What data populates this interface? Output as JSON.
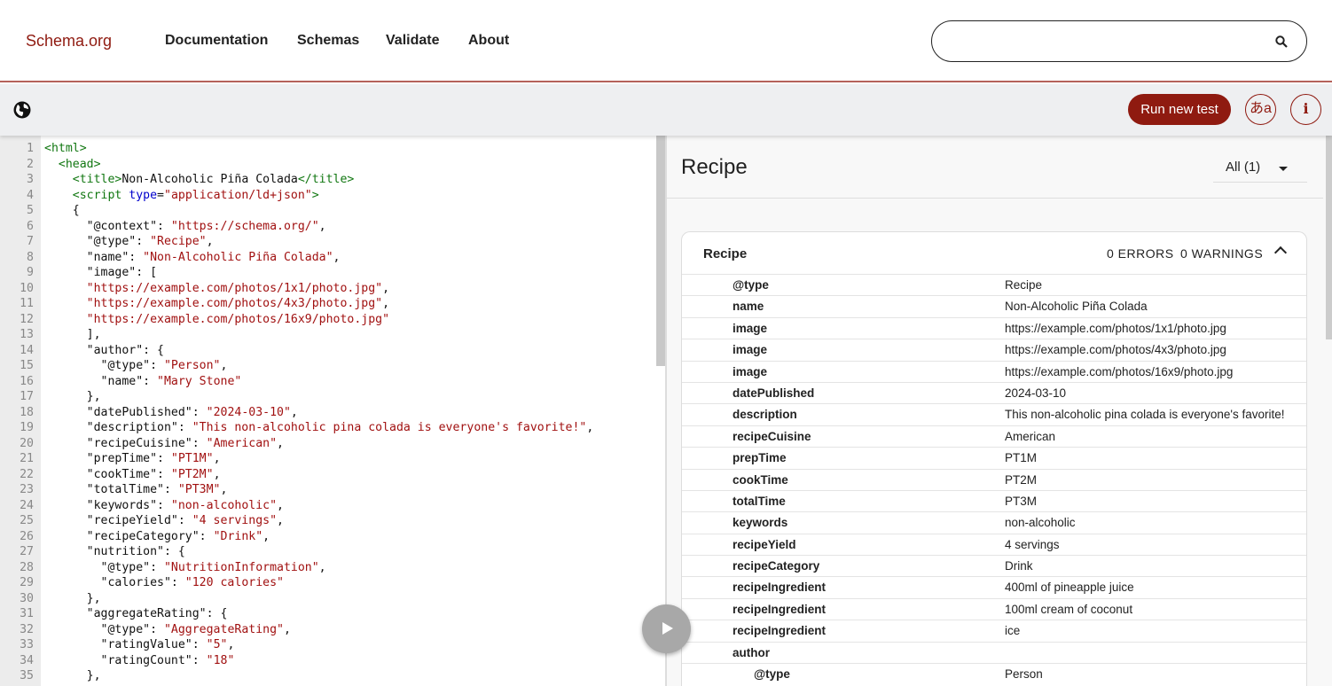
{
  "header": {
    "logo": "Schema.org",
    "nav": [
      "Documentation",
      "Schemas",
      "Validate",
      "About"
    ],
    "search_value": "",
    "search_icon": "search-icon"
  },
  "toolbar": {
    "globe_icon": "globe-icon",
    "run_label": "Run new test",
    "lang_label": "あa",
    "info_label": "i"
  },
  "colors": {
    "brand": "#8f1a10",
    "tag": "#117711",
    "attr": "#0000cc",
    "string": "#a11111"
  },
  "editor": {
    "lines": [
      [
        [
          0,
          "tag",
          "<html>"
        ]
      ],
      [
        [
          2,
          "tag",
          "<head>"
        ]
      ],
      [
        [
          4,
          "tag",
          "<title>"
        ],
        [
          0,
          "pl",
          "Non-Alcoholic Piña Colada"
        ],
        [
          0,
          "tag",
          "</title>"
        ]
      ],
      [
        [
          4,
          "tag",
          "<script "
        ],
        [
          0,
          "attr",
          "type"
        ],
        [
          0,
          "pl",
          "="
        ],
        [
          0,
          "str",
          "\"application/ld+json\""
        ],
        [
          0,
          "tag",
          ">"
        ]
      ],
      [
        [
          4,
          "pl",
          "{"
        ]
      ],
      [
        [
          6,
          "pl",
          "\"@context\": "
        ],
        [
          0,
          "str",
          "\"https://schema.org/\""
        ],
        [
          0,
          "pl",
          ","
        ]
      ],
      [
        [
          6,
          "pl",
          "\"@type\": "
        ],
        [
          0,
          "str",
          "\"Recipe\""
        ],
        [
          0,
          "pl",
          ","
        ]
      ],
      [
        [
          6,
          "pl",
          "\"name\": "
        ],
        [
          0,
          "str",
          "\"Non-Alcoholic Piña Colada\""
        ],
        [
          0,
          "pl",
          ","
        ]
      ],
      [
        [
          6,
          "pl",
          "\"image\": ["
        ]
      ],
      [
        [
          6,
          "str",
          "\"https://example.com/photos/1x1/photo.jpg\""
        ],
        [
          0,
          "pl",
          ","
        ]
      ],
      [
        [
          6,
          "str",
          "\"https://example.com/photos/4x3/photo.jpg\""
        ],
        [
          0,
          "pl",
          ","
        ]
      ],
      [
        [
          6,
          "str",
          "\"https://example.com/photos/16x9/photo.jpg\""
        ]
      ],
      [
        [
          6,
          "pl",
          "],"
        ]
      ],
      [
        [
          6,
          "pl",
          "\"author\": {"
        ]
      ],
      [
        [
          8,
          "pl",
          "\"@type\": "
        ],
        [
          0,
          "str",
          "\"Person\""
        ],
        [
          0,
          "pl",
          ","
        ]
      ],
      [
        [
          8,
          "pl",
          "\"name\": "
        ],
        [
          0,
          "str",
          "\"Mary Stone\""
        ]
      ],
      [
        [
          6,
          "pl",
          "},"
        ]
      ],
      [
        [
          6,
          "pl",
          "\"datePublished\": "
        ],
        [
          0,
          "str",
          "\"2024-03-10\""
        ],
        [
          0,
          "pl",
          ","
        ]
      ],
      [
        [
          6,
          "pl",
          "\"description\": "
        ],
        [
          0,
          "str",
          "\"This non-alcoholic pina colada is everyone's favorite!\""
        ],
        [
          0,
          "pl",
          ","
        ]
      ],
      [
        [
          6,
          "pl",
          "\"recipeCuisine\": "
        ],
        [
          0,
          "str",
          "\"American\""
        ],
        [
          0,
          "pl",
          ","
        ]
      ],
      [
        [
          6,
          "pl",
          "\"prepTime\": "
        ],
        [
          0,
          "str",
          "\"PT1M\""
        ],
        [
          0,
          "pl",
          ","
        ]
      ],
      [
        [
          6,
          "pl",
          "\"cookTime\": "
        ],
        [
          0,
          "str",
          "\"PT2M\""
        ],
        [
          0,
          "pl",
          ","
        ]
      ],
      [
        [
          6,
          "pl",
          "\"totalTime\": "
        ],
        [
          0,
          "str",
          "\"PT3M\""
        ],
        [
          0,
          "pl",
          ","
        ]
      ],
      [
        [
          6,
          "pl",
          "\"keywords\": "
        ],
        [
          0,
          "str",
          "\"non-alcoholic\""
        ],
        [
          0,
          "pl",
          ","
        ]
      ],
      [
        [
          6,
          "pl",
          "\"recipeYield\": "
        ],
        [
          0,
          "str",
          "\"4 servings\""
        ],
        [
          0,
          "pl",
          ","
        ]
      ],
      [
        [
          6,
          "pl",
          "\"recipeCategory\": "
        ],
        [
          0,
          "str",
          "\"Drink\""
        ],
        [
          0,
          "pl",
          ","
        ]
      ],
      [
        [
          6,
          "pl",
          "\"nutrition\": {"
        ]
      ],
      [
        [
          8,
          "pl",
          "\"@type\": "
        ],
        [
          0,
          "str",
          "\"NutritionInformation\""
        ],
        [
          0,
          "pl",
          ","
        ]
      ],
      [
        [
          8,
          "pl",
          "\"calories\": "
        ],
        [
          0,
          "str",
          "\"120 calories\""
        ]
      ],
      [
        [
          6,
          "pl",
          "},"
        ]
      ],
      [
        [
          6,
          "pl",
          "\"aggregateRating\": {"
        ]
      ],
      [
        [
          8,
          "pl",
          "\"@type\": "
        ],
        [
          0,
          "str",
          "\"AggregateRating\""
        ],
        [
          0,
          "pl",
          ","
        ]
      ],
      [
        [
          8,
          "pl",
          "\"ratingValue\": "
        ],
        [
          0,
          "str",
          "\"5\""
        ],
        [
          0,
          "pl",
          ","
        ]
      ],
      [
        [
          8,
          "pl",
          "\"ratingCount\": "
        ],
        [
          0,
          "str",
          "\"18\""
        ]
      ],
      [
        [
          6,
          "pl",
          "},"
        ]
      ]
    ]
  },
  "results": {
    "title": "Recipe",
    "filter": "All (1)",
    "card": {
      "title": "Recipe",
      "errors": "0 ERRORS",
      "warnings": "0 WARNINGS",
      "rows": [
        {
          "k": "@type",
          "v": "Recipe"
        },
        {
          "k": "name",
          "v": "Non-Alcoholic Piña Colada"
        },
        {
          "k": "image",
          "v": "https://example.com/photos/1x1/photo.jpg"
        },
        {
          "k": "image",
          "v": "https://example.com/photos/4x3/photo.jpg"
        },
        {
          "k": "image",
          "v": "https://example.com/photos/16x9/photo.jpg"
        },
        {
          "k": "datePublished",
          "v": "2024-03-10"
        },
        {
          "k": "description",
          "v": "This non-alcoholic pina colada is everyone's favorite!"
        },
        {
          "k": "recipeCuisine",
          "v": "American"
        },
        {
          "k": "prepTime",
          "v": "PT1M"
        },
        {
          "k": "cookTime",
          "v": "PT2M"
        },
        {
          "k": "totalTime",
          "v": "PT3M"
        },
        {
          "k": "keywords",
          "v": "non-alcoholic"
        },
        {
          "k": "recipeYield",
          "v": "4 servings"
        },
        {
          "k": "recipeCategory",
          "v": "Drink"
        },
        {
          "k": "recipeIngredient",
          "v": "400ml of pineapple juice"
        },
        {
          "k": "recipeIngredient",
          "v": "100ml cream of coconut"
        },
        {
          "k": "recipeIngredient",
          "v": "ice"
        },
        {
          "k": "author",
          "v": ""
        },
        {
          "k": "@type",
          "v": "Person",
          "sub": true
        }
      ]
    }
  }
}
